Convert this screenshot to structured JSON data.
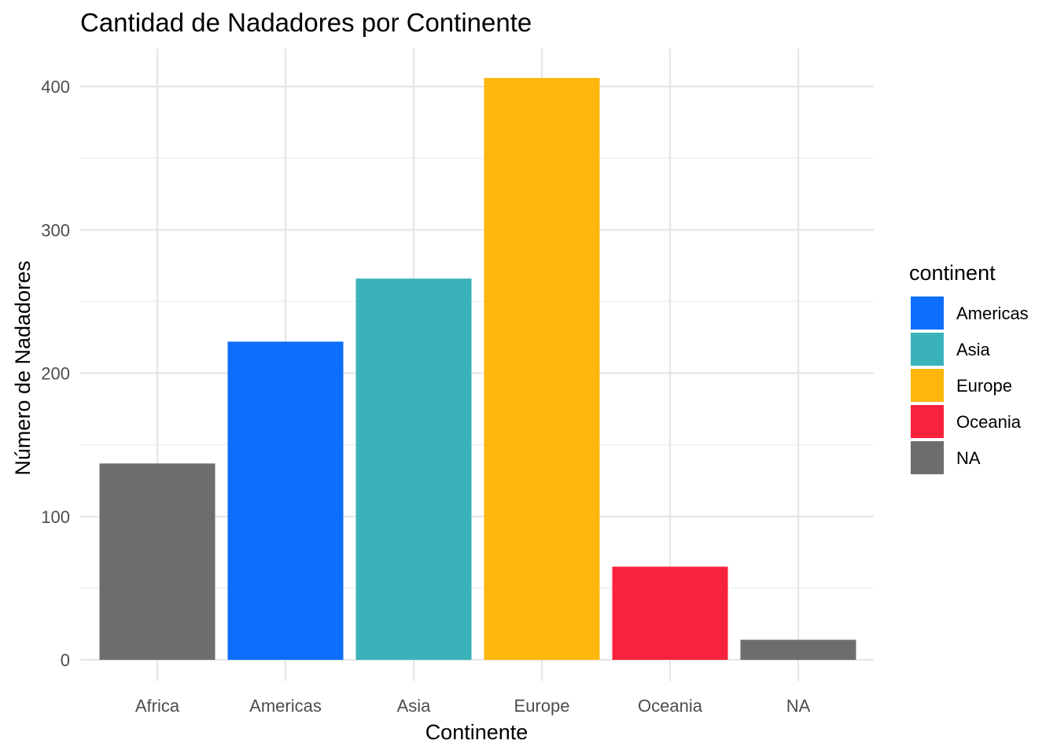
{
  "chart_data": {
    "type": "bar",
    "title": "Cantidad de Nadadores por Continente",
    "xlabel": "Continente",
    "ylabel": "Número de Nadadores",
    "categories": [
      "Africa",
      "Americas",
      "Asia",
      "Europe",
      "Oceania",
      "NA"
    ],
    "values": [
      137,
      222,
      266,
      406,
      65,
      14
    ],
    "bar_colors": [
      "#6d6d6d",
      "#0d6efd",
      "#3ab2bb",
      "#fdb60c",
      "#f7223c",
      "#6d6d6d"
    ],
    "ylim": [
      0,
      420
    ],
    "y_ticks": [
      0,
      100,
      200,
      300,
      400
    ],
    "y_tick_labels": [
      "0",
      "100",
      "200",
      "300",
      "400"
    ],
    "grid": true,
    "legend": {
      "title": "continent",
      "position": "right",
      "items": [
        {
          "label": "Americas",
          "color": "#0d6efd"
        },
        {
          "label": "Asia",
          "color": "#3ab2bb"
        },
        {
          "label": "Europe",
          "color": "#fdb60c"
        },
        {
          "label": "Oceania",
          "color": "#f7223c"
        },
        {
          "label": "NA",
          "color": "#6d6d6d"
        }
      ]
    }
  }
}
